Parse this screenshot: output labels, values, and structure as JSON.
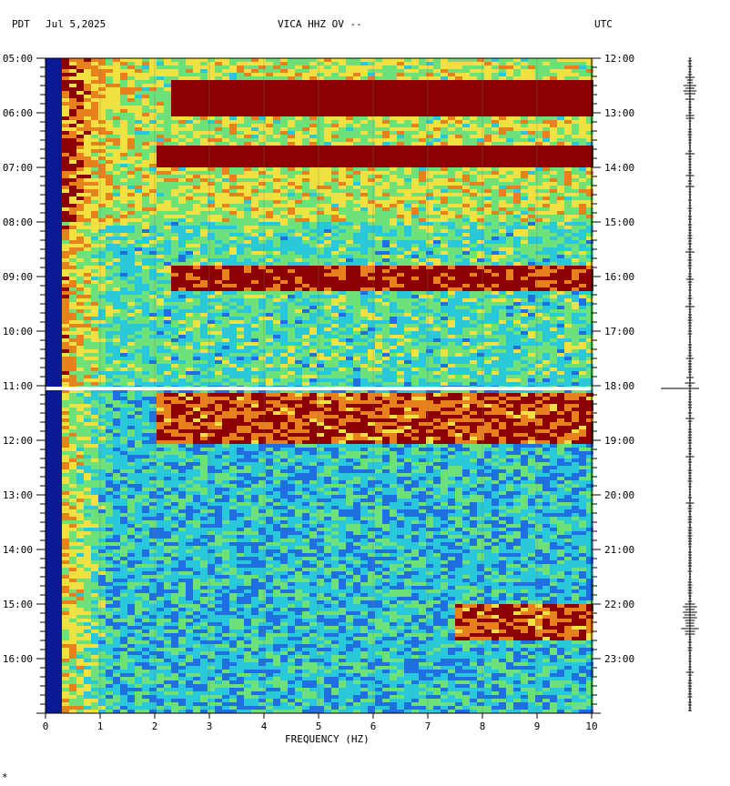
{
  "header": {
    "left_tz": "PDT",
    "date": "Jul 5,2025",
    "station": "VICA HHZ OV --",
    "right_tz": "UTC"
  },
  "footer_mark": "*",
  "chart_data": {
    "type": "heatmap",
    "title": "VICA HHZ OV --",
    "xlabel": "FREQUENCY (HZ)",
    "xlim": [
      0,
      10
    ],
    "x_ticks": [
      "0",
      "1",
      "2",
      "3",
      "4",
      "5",
      "6",
      "7",
      "8",
      "9",
      "10"
    ],
    "ylim_hours": [
      5,
      17
    ],
    "left_y_ticks": [
      "05:00",
      "06:00",
      "07:00",
      "08:00",
      "09:00",
      "10:00",
      "11:00",
      "12:00",
      "13:00",
      "14:00",
      "15:00",
      "16:00"
    ],
    "right_y_ticks": [
      "12:00",
      "13:00",
      "14:00",
      "15:00",
      "16:00",
      "17:00",
      "18:00",
      "19:00",
      "20:00",
      "21:00",
      "22:00",
      "23:00"
    ],
    "gap_at_hour": 11.05,
    "colors": {
      "low_band": "#0a1a96",
      "blue": "#1f6fe0",
      "cyan": "#28c8d8",
      "green": "#6ee07a",
      "yellow": "#f0e040",
      "orange": "#e8801e",
      "red": "#8b0000"
    },
    "high_energy_bands": [
      {
        "start_hour": 5.4,
        "end_hour": 6.0,
        "freq_from": 2.2
      },
      {
        "start_hour": 6.6,
        "end_hour": 6.95,
        "freq_from": 2.0
      },
      {
        "start_hour": 8.8,
        "end_hour": 9.2,
        "freq_from": 2.2
      },
      {
        "start_hour": 11.1,
        "end_hour": 12.05,
        "freq_from": 2.0
      },
      {
        "start_hour": 15.0,
        "end_hour": 15.6,
        "freq_from": 7.5
      }
    ]
  }
}
